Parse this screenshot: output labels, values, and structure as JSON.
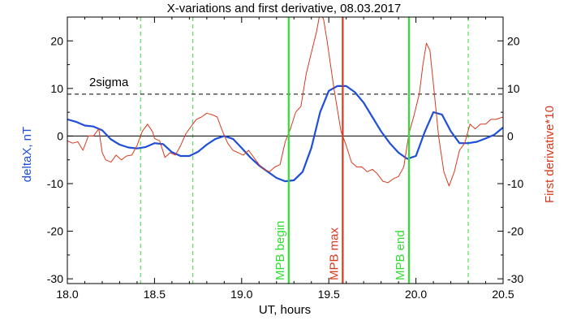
{
  "chart_data": {
    "type": "line",
    "title": "X-variations and first derivative, 08.03.2017",
    "xlabel": "UT, hours",
    "ylabel_left": "deltaX, nT",
    "ylabel_right": "First derivative*10",
    "xlim": [
      18.0,
      20.5
    ],
    "ylim": [
      -31,
      25
    ],
    "x_ticks": [
      18.0,
      18.5,
      19.0,
      19.5,
      20.0,
      20.5
    ],
    "x_tick_labels": [
      "18.0",
      "18.5",
      "19.0",
      "19.5",
      "20.0",
      "20.5"
    ],
    "y_ticks": [
      -30,
      -20,
      -10,
      0,
      10,
      20
    ],
    "y_tick_labels": [
      "-30",
      "-20",
      "-10",
      "0",
      "10",
      "20"
    ],
    "grid": false,
    "threshold": {
      "label": "2sigma",
      "value": 8.8
    },
    "zero_line": 0,
    "colors": {
      "deltaX": "#1f4fd8",
      "derivative": "#d63a1e",
      "mpb": "#33dd33",
      "max": "#d63a1e"
    },
    "markers": [
      {
        "label": "MPB begin",
        "x": 19.27,
        "style": "solid",
        "color": "#33dd33"
      },
      {
        "label": "MPB max",
        "x": 19.58,
        "style": "solid",
        "color": "#d63a1e"
      },
      {
        "label": "MPB end",
        "x": 19.96,
        "style": "solid",
        "color": "#33dd33"
      }
    ],
    "dashed_markers": [
      18.42,
      18.72,
      20.3
    ],
    "series": [
      {
        "name": "deltaX, nT",
        "color": "#1f4fd8",
        "x": [
          18.0,
          18.05,
          18.1,
          18.15,
          18.2,
          18.25,
          18.3,
          18.35,
          18.4,
          18.45,
          18.5,
          18.55,
          18.6,
          18.65,
          18.7,
          18.75,
          18.8,
          18.85,
          18.9,
          18.95,
          19.0,
          19.05,
          19.1,
          19.15,
          19.2,
          19.25,
          19.3,
          19.35,
          19.4,
          19.45,
          19.5,
          19.55,
          19.6,
          19.65,
          19.7,
          19.75,
          19.8,
          19.85,
          19.9,
          19.95,
          20.0,
          20.05,
          20.1,
          20.15,
          20.2,
          20.25,
          20.3,
          20.35,
          20.4,
          20.45,
          20.5
        ],
        "y": [
          3.5,
          3,
          2.2,
          2,
          1.2,
          -0.7,
          -1.8,
          -2.4,
          -2.6,
          -2.3,
          -1.5,
          -1.7,
          -3.4,
          -4.2,
          -4.2,
          -3.3,
          -1.8,
          -0.6,
          0,
          -0.6,
          -2.5,
          -4.5,
          -6.2,
          -7.5,
          -8.8,
          -9.5,
          -9.3,
          -7.5,
          -2.5,
          5,
          9.5,
          10.5,
          10.5,
          9.2,
          7,
          4,
          1,
          -1.5,
          -3.5,
          -4.8,
          -4.2,
          0.8,
          5,
          4.5,
          1,
          -1.5,
          -1.5,
          -1.2,
          -0.5,
          0.3,
          1.8
        ]
      },
      {
        "name": "First derivative*10",
        "color": "#d63a1e",
        "x": [
          18.0,
          18.03,
          18.06,
          18.09,
          18.12,
          18.15,
          18.18,
          18.2,
          18.22,
          18.25,
          18.28,
          18.31,
          18.34,
          18.37,
          18.4,
          18.43,
          18.46,
          18.49,
          18.5,
          18.53,
          18.56,
          18.59,
          18.62,
          18.65,
          18.68,
          18.71,
          18.74,
          18.77,
          18.8,
          18.83,
          18.86,
          18.89,
          18.92,
          18.95,
          18.98,
          19.01,
          19.04,
          19.07,
          19.1,
          19.13,
          19.16,
          19.19,
          19.22,
          19.25,
          19.28,
          19.31,
          19.34,
          19.37,
          19.4,
          19.43,
          19.45,
          19.47,
          19.49,
          19.51,
          19.53,
          19.55,
          19.57,
          19.6,
          19.63,
          19.66,
          19.69,
          19.72,
          19.75,
          19.78,
          19.81,
          19.84,
          19.87,
          19.9,
          19.93,
          19.96,
          19.99,
          20.02,
          20.04,
          20.06,
          20.08,
          20.1,
          20.13,
          20.16,
          20.19,
          20.22,
          20.25,
          20.28,
          20.31,
          20.34,
          20.37,
          20.4,
          20.43,
          20.46,
          20.5
        ],
        "y": [
          -1,
          -1.5,
          -1.2,
          -3,
          0,
          0,
          1.5,
          -3.5,
          -5,
          -5.5,
          -4,
          -5,
          -4.2,
          -4,
          -2,
          1,
          2.5,
          0.8,
          -0.5,
          -1,
          -4.5,
          -3.5,
          -4,
          -2,
          0.5,
          2,
          3.5,
          4,
          4.8,
          4.5,
          4,
          1,
          -1.5,
          -3,
          -3.5,
          -4,
          -3,
          -4.5,
          -6,
          -7,
          -7.5,
          -6.5,
          -6,
          -1.2,
          1.5,
          5,
          6.2,
          13,
          17.5,
          22,
          26,
          24.5,
          20,
          15,
          10,
          5.5,
          1,
          -2,
          -5.5,
          -6.5,
          -6.5,
          -7.5,
          -7,
          -8,
          -9.5,
          -9.8,
          -9,
          -8.5,
          -6.5,
          0.5,
          4.5,
          9,
          15,
          19.5,
          18,
          11,
          0,
          -7.5,
          -10.5,
          -7.5,
          -3,
          -1.5,
          2.5,
          1.5,
          2.5,
          2.5,
          3.5,
          3.5,
          4
        ]
      }
    ]
  }
}
